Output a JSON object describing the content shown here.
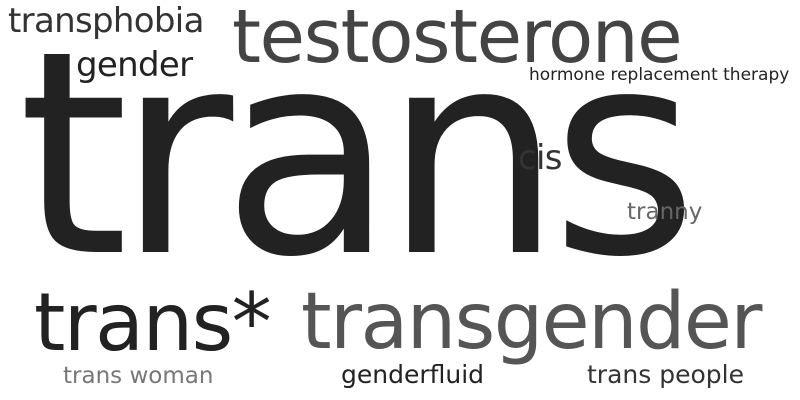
{
  "cloud": {
    "words": {
      "trans": "trans",
      "testosterone": "testosterone",
      "transphobia": "transphobia",
      "gender": "gender",
      "hormone_replacement_therapy": "hormone replacement therapy",
      "cis": "cis",
      "tranny": "tranny",
      "trans_star": "trans*",
      "transgender": "transgender",
      "trans_woman": "trans woman",
      "genderfluid": "genderfluid",
      "trans_people": "trans people"
    },
    "colors": {
      "background": "#ffffff",
      "darkest": "#222222",
      "dark": "#333333",
      "mid_dark": "#444444",
      "mid": "#555555",
      "light": "#666666",
      "lighter": "#777777"
    }
  }
}
